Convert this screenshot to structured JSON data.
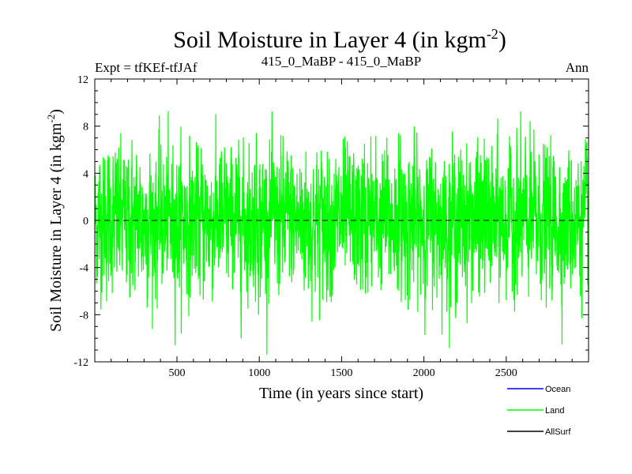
{
  "chart_data": {
    "type": "line",
    "title": "Soil Moisture in Layer 4 (in kgm",
    "title_sup": "-2",
    "title_end": ")",
    "subtitle_left": "Expt = tfKEf-tfJAf",
    "subtitle_center": "415_0_MaBP - 415_0_MaBP",
    "subtitle_right": "Ann",
    "xlabel": "Time (in years since start)",
    "ylabel": "Soil Moisture in Layer 4 (in kgm",
    "ylabel_sup": "-2",
    "ylabel_end": ")",
    "xlim": [
      1,
      3000
    ],
    "ylim": [
      -12,
      12
    ],
    "x_ticks": [
      500,
      1000,
      1500,
      2000,
      2500
    ],
    "x_tick_labels": [
      "500",
      "1000",
      "1500",
      "2000",
      "2500"
    ],
    "y_ticks": [
      -12,
      -8,
      -4,
      0,
      4,
      8,
      12
    ],
    "y_tick_labels": [
      "-12",
      "-8",
      "-4",
      "0",
      "4",
      "8",
      "12"
    ],
    "zero_line": true,
    "grid": false,
    "legend_position": "bottom-right",
    "series": [
      {
        "name": "Ocean",
        "color": "#0000ff",
        "values": []
      },
      {
        "name": "Land",
        "color": "#00ff00",
        "values": [],
        "approximate_range": [
          -11.6,
          10
        ],
        "approximate_std": 3.0
      },
      {
        "name": "AllSurf",
        "color": "#000000",
        "values": []
      }
    ]
  }
}
